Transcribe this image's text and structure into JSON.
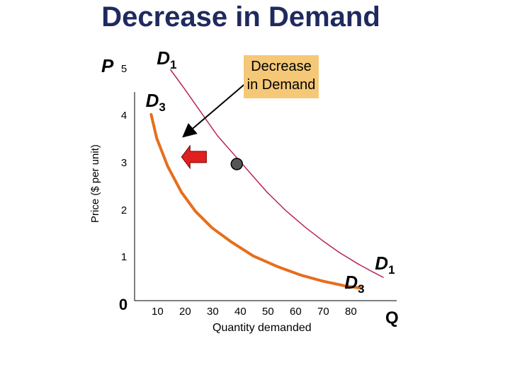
{
  "chart_data": {
    "type": "line",
    "title": "Decrease in Demand",
    "ylabel": "Price ($ per unit)",
    "xlabel": "Quantity demanded",
    "p_axis_label": "P",
    "q_axis_label": "Q",
    "y_ticks": [
      "0",
      "1",
      "2",
      "3",
      "4",
      "5"
    ],
    "x_ticks": [
      "10",
      "20",
      "30",
      "40",
      "50",
      "60",
      "70",
      "80"
    ],
    "series": [
      {
        "name": "D1",
        "color": "#bb2255",
        "x": [
          13,
          18,
          24,
          30,
          36,
          42,
          48,
          55,
          62,
          68,
          74,
          81,
          86,
          90
        ],
        "y": [
          5.0,
          4.6,
          4.1,
          3.6,
          3.2,
          2.8,
          2.4,
          2.0,
          1.65,
          1.38,
          1.13,
          0.88,
          0.72,
          0.6
        ]
      },
      {
        "name": "D3",
        "color": "#e76e1c",
        "x": [
          6,
          8,
          12,
          17,
          22,
          28,
          35,
          43,
          52,
          60,
          68,
          76,
          82
        ],
        "y": [
          4.05,
          3.55,
          2.95,
          2.4,
          2.0,
          1.65,
          1.35,
          1.05,
          0.82,
          0.65,
          0.52,
          0.42,
          0.37
        ]
      }
    ],
    "point": {
      "x": 37,
      "y": 3.0
    },
    "shift_arrow": {
      "from_x": 26,
      "to_x": 17,
      "y": 3.15,
      "color": "#e02020"
    },
    "annotation": {
      "text": "Decrease in Demand",
      "from_x": 40,
      "from_y": 4.7,
      "to_x": 18,
      "to_y": 3.6
    },
    "curve_labels": [
      {
        "name": "D",
        "sub": "1",
        "x": 8,
        "y": 5.2
      },
      {
        "name": "D",
        "sub": "3",
        "x": 4,
        "y": 4.3
      },
      {
        "name": "D",
        "sub": "3",
        "x": 76,
        "y": 0.45
      },
      {
        "name": "D",
        "sub": "1",
        "x": 87,
        "y": 0.85
      }
    ]
  }
}
